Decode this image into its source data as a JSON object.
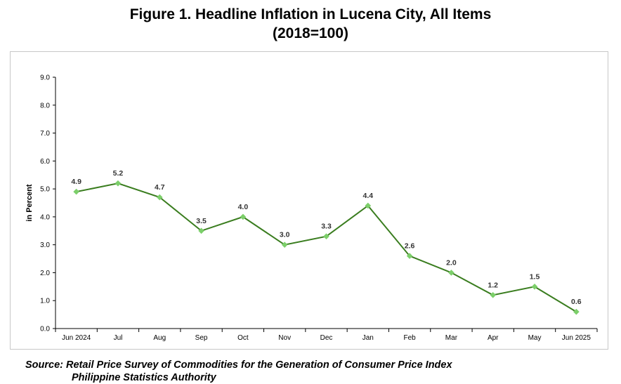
{
  "title_line1": "Figure 1. Headline Inflation in Lucena City, All Items",
  "title_line2": "(2018=100)",
  "source_line1": "Source: Retail Price Survey of Commodities for the Generation of Consumer Price Index",
  "source_line2": "Philippine Statistics Authority",
  "colors": {
    "line": "#3a7d1f",
    "marker": "#7ccf6a",
    "grid": "#000000"
  },
  "chart_data": {
    "type": "line",
    "title": "Figure 1. Headline Inflation in Lucena City, All Items (2018=100)",
    "xlabel": "",
    "ylabel": "in Percent",
    "categories": [
      "Jun 2024",
      "Jul",
      "Aug",
      "Sep",
      "Oct",
      "Nov",
      "Dec",
      "Jan",
      "Feb",
      "Mar",
      "Apr",
      "May",
      "Jun 2025"
    ],
    "series": [
      {
        "values": [
          4.9,
          5.2,
          4.7,
          3.5,
          4.0,
          3.0,
          3.3,
          4.4,
          2.6,
          2.0,
          1.2,
          1.5,
          0.6
        ]
      }
    ],
    "data_labels": [
      "4.9",
      "5.2",
      "4.7",
      "3.5",
      "4.0",
      "3.0",
      "3.3",
      "4.4",
      "2.6",
      "2.0",
      "1.2",
      "1.5",
      "0.6"
    ],
    "ylim": [
      0,
      9
    ],
    "yticks": [
      "0.0",
      "1.0",
      "2.0",
      "3.0",
      "4.0",
      "5.0",
      "6.0",
      "7.0",
      "8.0",
      "9.0"
    ],
    "grid": false,
    "legend": "none"
  }
}
